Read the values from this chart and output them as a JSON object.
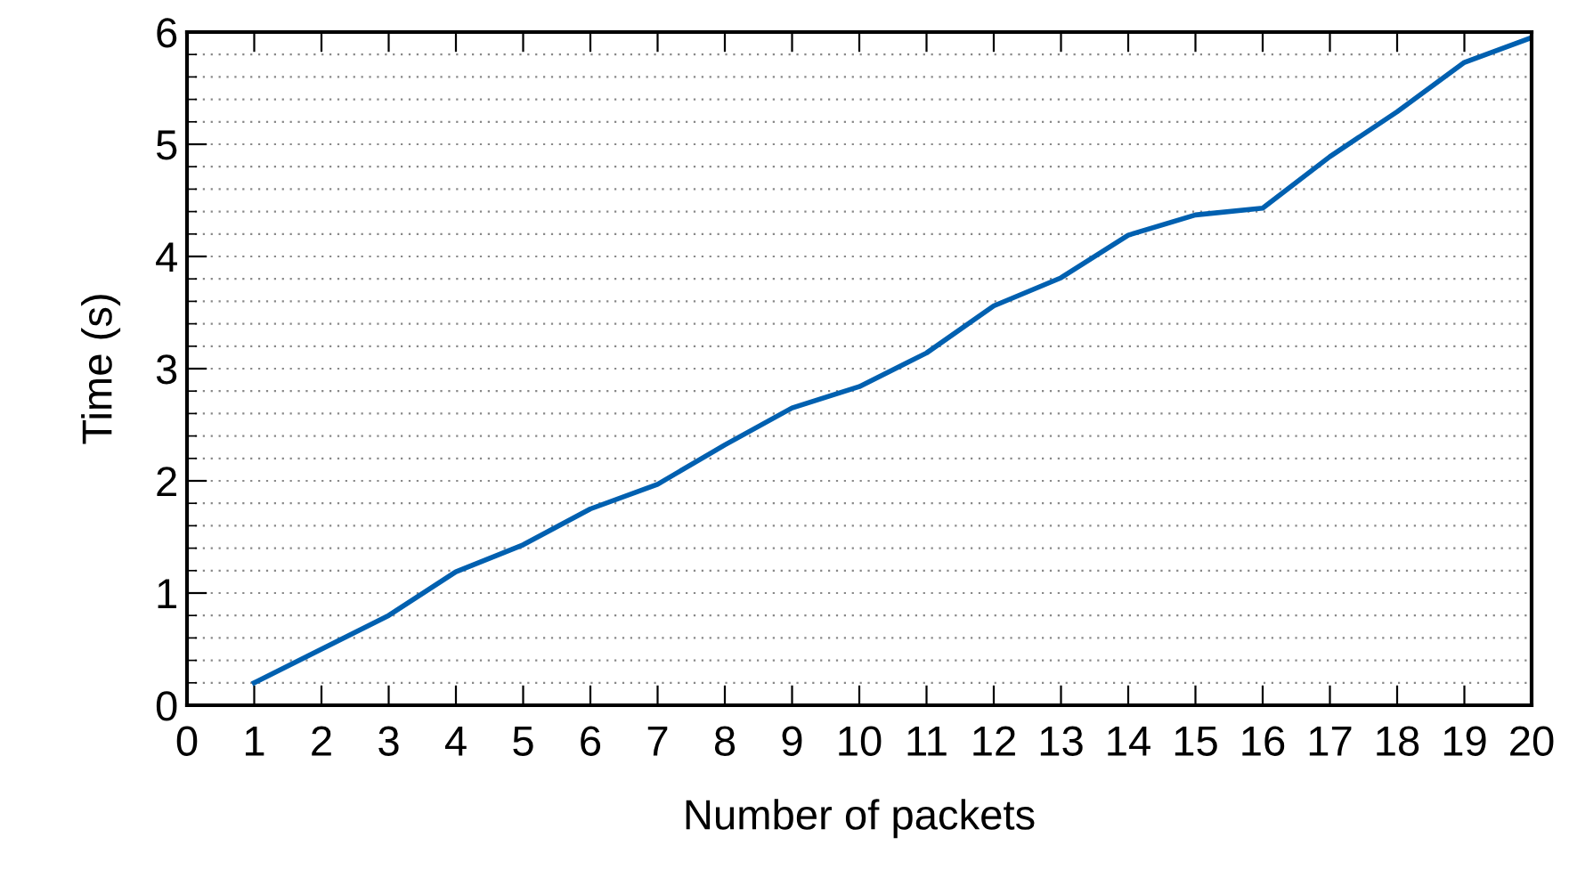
{
  "chart_data": {
    "type": "line",
    "xlabel": "Number of packets",
    "ylabel": "Time (s)",
    "x": [
      1,
      2,
      3,
      4,
      5,
      6,
      7,
      8,
      9,
      10,
      11,
      12,
      13,
      14,
      15,
      16,
      17,
      18,
      19,
      20
    ],
    "series": [
      {
        "color": "#0060b0",
        "values": [
          0.2,
          0.5,
          0.8,
          1.19,
          1.43,
          1.75,
          1.97,
          2.32,
          2.65,
          2.84,
          3.14,
          3.56,
          3.81,
          4.19,
          4.37,
          4.43,
          4.89,
          5.29,
          5.73,
          5.95
        ]
      }
    ],
    "xlim": [
      0,
      20
    ],
    "xticks": [
      0,
      1,
      2,
      3,
      4,
      5,
      6,
      7,
      8,
      9,
      10,
      11,
      12,
      13,
      14,
      15,
      16,
      17,
      18,
      19,
      20
    ],
    "ylim": [
      0,
      6
    ],
    "yticks": [
      0,
      1,
      2,
      3,
      4,
      5,
      6
    ],
    "grid": "y",
    "marker": "none",
    "line_style": "solid"
  }
}
